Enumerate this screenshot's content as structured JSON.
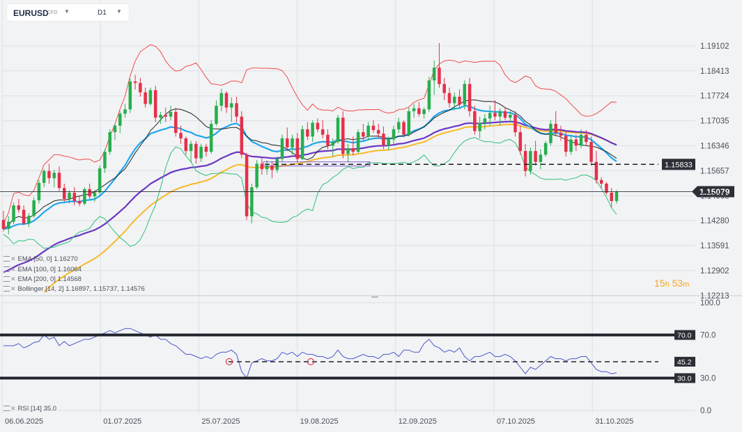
{
  "toolbar": {
    "symbol": "EURUSD",
    "symbol_type": "CFD",
    "interval": "D1"
  },
  "countdown": {
    "h": "15",
    "h_unit": "h",
    "m": "53",
    "m_unit": "m"
  },
  "legend": [
    {
      "text": "EMA [50, 0] 1.16270"
    },
    {
      "text": "EMA [100, 0] 1.16064"
    },
    {
      "text": "EMA [200, 0] 1.14568"
    },
    {
      "text": "Bollinger [14, 2] 1.16897, 1.15737, 1.14576"
    }
  ],
  "rsi_legend": "RSI [14] 35.0",
  "colors": {
    "up": "#27ae4c",
    "down": "#e5304a",
    "ema50": "#1ea7ec",
    "ema100": "#6a36c4",
    "ema200": "#f7b928",
    "boll_upper": "#ef4a4a",
    "boll_mid": "#222222",
    "boll_lower": "#2bc07a",
    "rsi": "#4b56c8"
  },
  "chart_data": [
    {
      "type": "candlestick",
      "x_labels": [
        "06.06.2025",
        "01.07.2025",
        "25.07.2025",
        "19.08.2025",
        "12.09.2025",
        "07.10.2025",
        "31.10.2025"
      ],
      "y_ticks": [
        "1.19102",
        "1.18413",
        "1.17724",
        "1.17035",
        "1.16346",
        "1.15657",
        "1.14968",
        "1.14280",
        "1.13591",
        "1.12902",
        "1.12213"
      ],
      "ylim": [
        1.1221,
        1.196
      ],
      "current_price": "1.15079",
      "level": {
        "value": 1.15833,
        "label": "1.15833"
      },
      "ohlc": [
        [
          1.143,
          1.1455,
          1.1398,
          1.1405
        ],
        [
          1.1405,
          1.144,
          1.139,
          1.1425
        ],
        [
          1.1425,
          1.1478,
          1.1418,
          1.147
        ],
        [
          1.147,
          1.1488,
          1.145,
          1.1458
        ],
        [
          1.1458,
          1.147,
          1.1415,
          1.142
        ],
        [
          1.142,
          1.1448,
          1.141,
          1.1441
        ],
        [
          1.1441,
          1.1492,
          1.1435,
          1.1484
        ],
        [
          1.1484,
          1.154,
          1.1475,
          1.1532
        ],
        [
          1.1532,
          1.157,
          1.152,
          1.1565
        ],
        [
          1.1565,
          1.1585,
          1.153,
          1.1545
        ],
        [
          1.1545,
          1.1568,
          1.152,
          1.156
        ],
        [
          1.156,
          1.1578,
          1.151,
          1.1518
        ],
        [
          1.1518,
          1.153,
          1.148,
          1.1488
        ],
        [
          1.1488,
          1.1512,
          1.1475,
          1.1505
        ],
        [
          1.1505,
          1.152,
          1.147,
          1.1482
        ],
        [
          1.1482,
          1.1495,
          1.1468,
          1.1475
        ],
        [
          1.1475,
          1.152,
          1.147,
          1.1515
        ],
        [
          1.1515,
          1.153,
          1.1488,
          1.1495
        ],
        [
          1.1495,
          1.1512,
          1.148,
          1.1506
        ],
        [
          1.1506,
          1.158,
          1.15,
          1.1572
        ],
        [
          1.1572,
          1.1625,
          1.156,
          1.1618
        ],
        [
          1.1618,
          1.168,
          1.161,
          1.1672
        ],
        [
          1.1672,
          1.1695,
          1.165,
          1.169
        ],
        [
          1.169,
          1.173,
          1.167,
          1.1723
        ],
        [
          1.1723,
          1.175,
          1.1712,
          1.1735
        ],
        [
          1.1735,
          1.182,
          1.1725,
          1.1812
        ],
        [
          1.1812,
          1.183,
          1.179,
          1.1808
        ],
        [
          1.1808,
          1.1822,
          1.177,
          1.1782
        ],
        [
          1.1782,
          1.1795,
          1.174,
          1.175
        ],
        [
          1.175,
          1.1795,
          1.1745,
          1.1788
        ],
        [
          1.1788,
          1.18,
          1.17,
          1.1712
        ],
        [
          1.1712,
          1.1728,
          1.1695,
          1.172
        ],
        [
          1.172,
          1.174,
          1.17,
          1.1715
        ],
        [
          1.1715,
          1.1745,
          1.1705,
          1.1728
        ],
        [
          1.1728,
          1.174,
          1.166,
          1.167
        ],
        [
          1.167,
          1.169,
          1.164,
          1.1655
        ],
        [
          1.1655,
          1.166,
          1.161,
          1.162
        ],
        [
          1.162,
          1.1648,
          1.1588,
          1.164
        ],
        [
          1.164,
          1.1648,
          1.1585,
          1.16
        ],
        [
          1.16,
          1.164,
          1.159,
          1.1632
        ],
        [
          1.1632,
          1.164,
          1.1605,
          1.1618
        ],
        [
          1.1618,
          1.1705,
          1.1612,
          1.1695
        ],
        [
          1.1695,
          1.176,
          1.169,
          1.1745
        ],
        [
          1.1745,
          1.1792,
          1.173,
          1.178
        ],
        [
          1.178,
          1.1785,
          1.1725,
          1.174
        ],
        [
          1.174,
          1.1768,
          1.17,
          1.1752
        ],
        [
          1.1752,
          1.177,
          1.17,
          1.1715
        ],
        [
          1.1715,
          1.173,
          1.16,
          1.161
        ],
        [
          1.161,
          1.1615,
          1.143,
          1.144
        ],
        [
          1.144,
          1.153,
          1.142,
          1.152
        ],
        [
          1.152,
          1.1595,
          1.1515,
          1.1585
        ],
        [
          1.1585,
          1.16,
          1.1555,
          1.157
        ],
        [
          1.157,
          1.1595,
          1.1555,
          1.158
        ],
        [
          1.158,
          1.1592,
          1.1545,
          1.1568
        ],
        [
          1.1568,
          1.1605,
          1.156,
          1.1598
        ],
        [
          1.1598,
          1.1665,
          1.159,
          1.1655
        ],
        [
          1.1655,
          1.1685,
          1.162,
          1.163
        ],
        [
          1.163,
          1.1665,
          1.161,
          1.1655
        ],
        [
          1.1655,
          1.167,
          1.1588,
          1.1598
        ],
        [
          1.1598,
          1.169,
          1.1595,
          1.168
        ],
        [
          1.168,
          1.17,
          1.165,
          1.166
        ],
        [
          1.166,
          1.1705,
          1.1645,
          1.1698
        ],
        [
          1.1698,
          1.171,
          1.1672,
          1.168
        ],
        [
          1.168,
          1.1705,
          1.1655,
          1.1665
        ],
        [
          1.1665,
          1.168,
          1.1625,
          1.1635
        ],
        [
          1.1635,
          1.1655,
          1.1605,
          1.1645
        ],
        [
          1.1645,
          1.172,
          1.164,
          1.1712
        ],
        [
          1.1712,
          1.173,
          1.16,
          1.1612
        ],
        [
          1.1612,
          1.164,
          1.159,
          1.1628
        ],
        [
          1.1628,
          1.166,
          1.1608,
          1.1618
        ],
        [
          1.1618,
          1.168,
          1.1615,
          1.1672
        ],
        [
          1.1672,
          1.1695,
          1.165,
          1.166
        ],
        [
          1.166,
          1.17,
          1.165,
          1.169
        ],
        [
          1.169,
          1.1705,
          1.167,
          1.1678
        ],
        [
          1.1678,
          1.1695,
          1.1655,
          1.1668
        ],
        [
          1.1668,
          1.1688,
          1.1625,
          1.1635
        ],
        [
          1.1635,
          1.166,
          1.1622,
          1.1652
        ],
        [
          1.1652,
          1.169,
          1.164,
          1.168
        ],
        [
          1.168,
          1.1712,
          1.167,
          1.17
        ],
        [
          1.17,
          1.1705,
          1.1658,
          1.1665
        ],
        [
          1.1665,
          1.174,
          1.166,
          1.173
        ],
        [
          1.173,
          1.175,
          1.1712,
          1.1738
        ],
        [
          1.1738,
          1.1755,
          1.1715,
          1.1722
        ],
        [
          1.1722,
          1.174,
          1.171,
          1.1735
        ],
        [
          1.1735,
          1.1825,
          1.1728,
          1.1815
        ],
        [
          1.1815,
          1.187,
          1.1775,
          1.185
        ],
        [
          1.185,
          1.1918,
          1.1795,
          1.1805
        ],
        [
          1.1805,
          1.1822,
          1.176,
          1.178
        ],
        [
          1.178,
          1.1795,
          1.174,
          1.1752
        ],
        [
          1.1752,
          1.1782,
          1.1732,
          1.177
        ],
        [
          1.177,
          1.179,
          1.174,
          1.1748
        ],
        [
          1.1748,
          1.1815,
          1.1735,
          1.1805
        ],
        [
          1.1805,
          1.1822,
          1.1715,
          1.173
        ],
        [
          1.173,
          1.1745,
          1.1665,
          1.1675
        ],
        [
          1.1675,
          1.1715,
          1.1655,
          1.1698
        ],
        [
          1.1698,
          1.1722,
          1.168,
          1.171
        ],
        [
          1.171,
          1.1745,
          1.169,
          1.1725
        ],
        [
          1.1725,
          1.176,
          1.1705,
          1.1715
        ],
        [
          1.1715,
          1.1738,
          1.169,
          1.173
        ],
        [
          1.173,
          1.1742,
          1.1705,
          1.1712
        ],
        [
          1.1712,
          1.173,
          1.17,
          1.172
        ],
        [
          1.172,
          1.173,
          1.166,
          1.1672
        ],
        [
          1.1672,
          1.169,
          1.161,
          1.162
        ],
        [
          1.162,
          1.164,
          1.155,
          1.1565
        ],
        [
          1.1565,
          1.163,
          1.1555,
          1.162
        ],
        [
          1.162,
          1.1648,
          1.158,
          1.159
        ],
        [
          1.159,
          1.1625,
          1.157,
          1.161
        ],
        [
          1.161,
          1.1648,
          1.1605,
          1.1642
        ],
        [
          1.1642,
          1.1705,
          1.1635,
          1.1695
        ],
        [
          1.1695,
          1.173,
          1.166,
          1.167
        ],
        [
          1.167,
          1.169,
          1.1648,
          1.1662
        ],
        [
          1.1662,
          1.1678,
          1.1605,
          1.1618
        ],
        [
          1.1618,
          1.166,
          1.161,
          1.1652
        ],
        [
          1.1652,
          1.1665,
          1.162,
          1.1635
        ],
        [
          1.1635,
          1.168,
          1.1628,
          1.1665
        ],
        [
          1.1665,
          1.1678,
          1.1635,
          1.1645
        ],
        [
          1.1645,
          1.166,
          1.158,
          1.159
        ],
        [
          1.159,
          1.162,
          1.153,
          1.154
        ],
        [
          1.154,
          1.1548,
          1.1518,
          1.153
        ],
        [
          1.153,
          1.1535,
          1.15,
          1.1505
        ],
        [
          1.1505,
          1.1518,
          1.1465,
          1.1482
        ],
        [
          1.1482,
          1.1512,
          1.1475,
          1.1508
        ]
      ]
    },
    {
      "type": "line",
      "name": "RSI",
      "y_ticks": [
        "100.0",
        "70.0",
        "30.0",
        "0.0"
      ],
      "ylim": [
        0,
        100
      ],
      "levels": [
        {
          "value": 70,
          "label": "70.0"
        },
        {
          "value": 45.2,
          "label": "45.2"
        },
        {
          "value": 30,
          "label": "30.0"
        }
      ],
      "values": [
        60,
        60,
        60,
        62,
        58,
        60,
        63,
        64,
        70,
        66,
        68,
        60,
        64,
        60,
        62,
        64,
        66,
        66,
        68,
        70,
        72,
        74,
        72,
        74,
        76,
        76,
        74,
        72,
        70,
        68,
        70,
        66,
        66,
        62,
        60,
        56,
        52,
        52,
        50,
        48,
        50,
        48,
        52,
        54,
        54,
        56,
        52,
        36,
        30,
        44,
        46,
        48,
        46,
        46,
        48,
        54,
        52,
        54,
        50,
        54,
        52,
        52,
        50,
        50,
        48,
        50,
        56,
        50,
        48,
        48,
        50,
        52,
        50,
        50,
        48,
        52,
        52,
        54,
        50,
        56,
        56,
        54,
        54,
        62,
        66,
        60,
        58,
        54,
        56,
        54,
        58,
        50,
        46,
        50,
        50,
        52,
        54,
        50,
        50,
        52,
        50,
        46,
        40,
        34,
        40,
        38,
        42,
        46,
        50,
        48,
        48,
        46,
        48,
        48,
        50,
        50,
        44,
        38,
        36,
        36,
        34,
        35
      ]
    }
  ]
}
